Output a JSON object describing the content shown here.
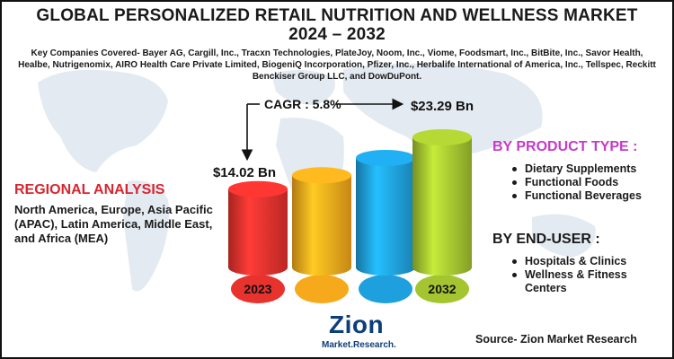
{
  "header": {
    "title_line1": "GLOBAL PERSONALIZED RETAIL NUTRITION AND WELLNESS MARKET",
    "title_line2": "2024 – 2032"
  },
  "companies": "Key Companies Covered- Bayer AG, Cargill, Inc., Tracxn Technologies, PlateJoy, Noom, Inc., Viome, Foodsmart, Inc., BitBite, Inc., Savor Health, Healbe, Nutrigenomix, AIRO Health Care Private Limited, BiogeniQ Incorporation, Pfizer, Inc., Herbalife International of America, Inc., Tellspec, Reckitt Benckiser Group LLC, and DowDuPont.",
  "regional": {
    "heading": "REGIONAL ANALYSIS",
    "text": "North America, Europe, Asia Pacific (APAC), Latin America, Middle East, and Africa (MEA)"
  },
  "chart_data": {
    "type": "bar",
    "categories": [
      "2023",
      "",
      "",
      "2032"
    ],
    "values": [
      14.02,
      16.5,
      19.6,
      23.29
    ],
    "value_labels": [
      "$14.02 Bn",
      "",
      "",
      "$23.29 Bn"
    ],
    "cagr_label": "CAGR : 5.8%",
    "bar_colors": [
      "#e8322e",
      "#f7a91c",
      "#1fa0de",
      "#a5c530"
    ],
    "ylim": [
      0,
      25
    ]
  },
  "segments": {
    "product_heading": "BY PRODUCT TYPE :",
    "products": [
      "Dietary Supplements",
      "Functional Foods",
      "Functional Beverages"
    ],
    "enduser_heading": "BY END-USER :",
    "endusers": [
      "Hospitals & Clinics",
      "Wellness & Fitness Centers"
    ]
  },
  "logo": {
    "word": "Zion",
    "sub": "Market.Research."
  },
  "source": "Source- Zion Market Research"
}
